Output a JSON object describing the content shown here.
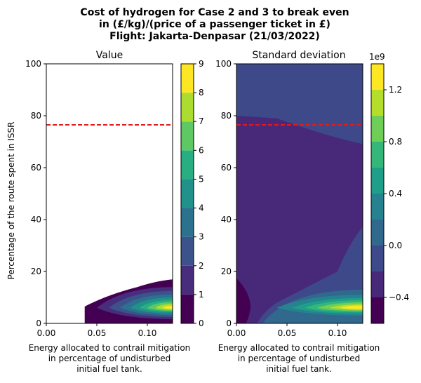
{
  "figure": {
    "title_lines": [
      "Cost of hydrogen for Case 2 and 3 to break even",
      "in (£/kg)/(price of a passenger ticket in £)",
      "Flight: Jakarta-Denpasar (21/03/2022)"
    ]
  },
  "chart_data": [
    {
      "type": "contour",
      "title": "Value",
      "xlabel_lines": [
        "Energy allocated to contrail mitigation",
        "in percentage of undisturbed",
        "initial fuel tank."
      ],
      "ylabel": "Percentage of the route spent in ISSR",
      "x_ticks": [
        "0.00",
        "0.05",
        "0.10"
      ],
      "x_tick_values": [
        0.0,
        0.05,
        0.1
      ],
      "y_ticks": [
        "0",
        "20",
        "40",
        "60",
        "80",
        "100"
      ],
      "y_tick_values": [
        0,
        20,
        40,
        60,
        80,
        100
      ],
      "xlim": [
        0.0,
        0.125
      ],
      "ylim": [
        0,
        100
      ],
      "reference_line": {
        "y": 76.5,
        "color": "#e41a1c",
        "style": "dashed"
      },
      "colorbar": {
        "levels": [
          0,
          1,
          2,
          3,
          4,
          5,
          6,
          7,
          8,
          9
        ],
        "ticks": [
          "0",
          "1",
          "2",
          "3",
          "4",
          "5",
          "6",
          "7",
          "8",
          "9"
        ],
        "colors": [
          "#440154",
          "#472d7b",
          "#3b528b",
          "#2c728e",
          "#21918c",
          "#28ae80",
          "#5ec962",
          "#addc30",
          "#fde725"
        ]
      },
      "peak": {
        "x": 0.122,
        "y": 6,
        "value": 8.5
      },
      "blank_region": "white where undefined (left of x≈0.038 and above the band)"
    },
    {
      "type": "contour",
      "title": "Standard deviation",
      "xlabel_lines": [
        "Energy allocated to contrail mitigation",
        "in percentage of undisturbed",
        "initial fuel tank."
      ],
      "x_ticks": [
        "0.00",
        "0.05",
        "0.10"
      ],
      "x_tick_values": [
        0.0,
        0.05,
        0.1
      ],
      "y_ticks": [
        "0",
        "20",
        "40",
        "60",
        "80",
        "100"
      ],
      "y_tick_values": [
        0,
        20,
        40,
        60,
        80,
        100
      ],
      "xlim": [
        0.0,
        0.125
      ],
      "ylim": [
        0,
        100
      ],
      "reference_line": {
        "y": 76.5,
        "color": "#e41a1c",
        "style": "dashed"
      },
      "colorbar": {
        "levels": [
          -0.6,
          -0.4,
          -0.2,
          0.0,
          0.2,
          0.4,
          0.6,
          0.8,
          1.0,
          1.2,
          1.4
        ],
        "ticks": [
          "−0.4",
          "0.0",
          "0.4",
          "0.8",
          "1.2"
        ],
        "tick_values": [
          -0.4,
          0.0,
          0.4,
          0.8,
          1.2
        ],
        "offset_text": "1e9",
        "colors": [
          "#440154",
          "#482878",
          "#3e4989",
          "#31688e",
          "#26828e",
          "#1f9e89",
          "#35b779",
          "#6ece58",
          "#b5de2b",
          "#fde725"
        ]
      },
      "peak": {
        "x": 0.122,
        "y": 6,
        "value": 1300000000.0
      },
      "background_value": -100000000.0
    }
  ]
}
